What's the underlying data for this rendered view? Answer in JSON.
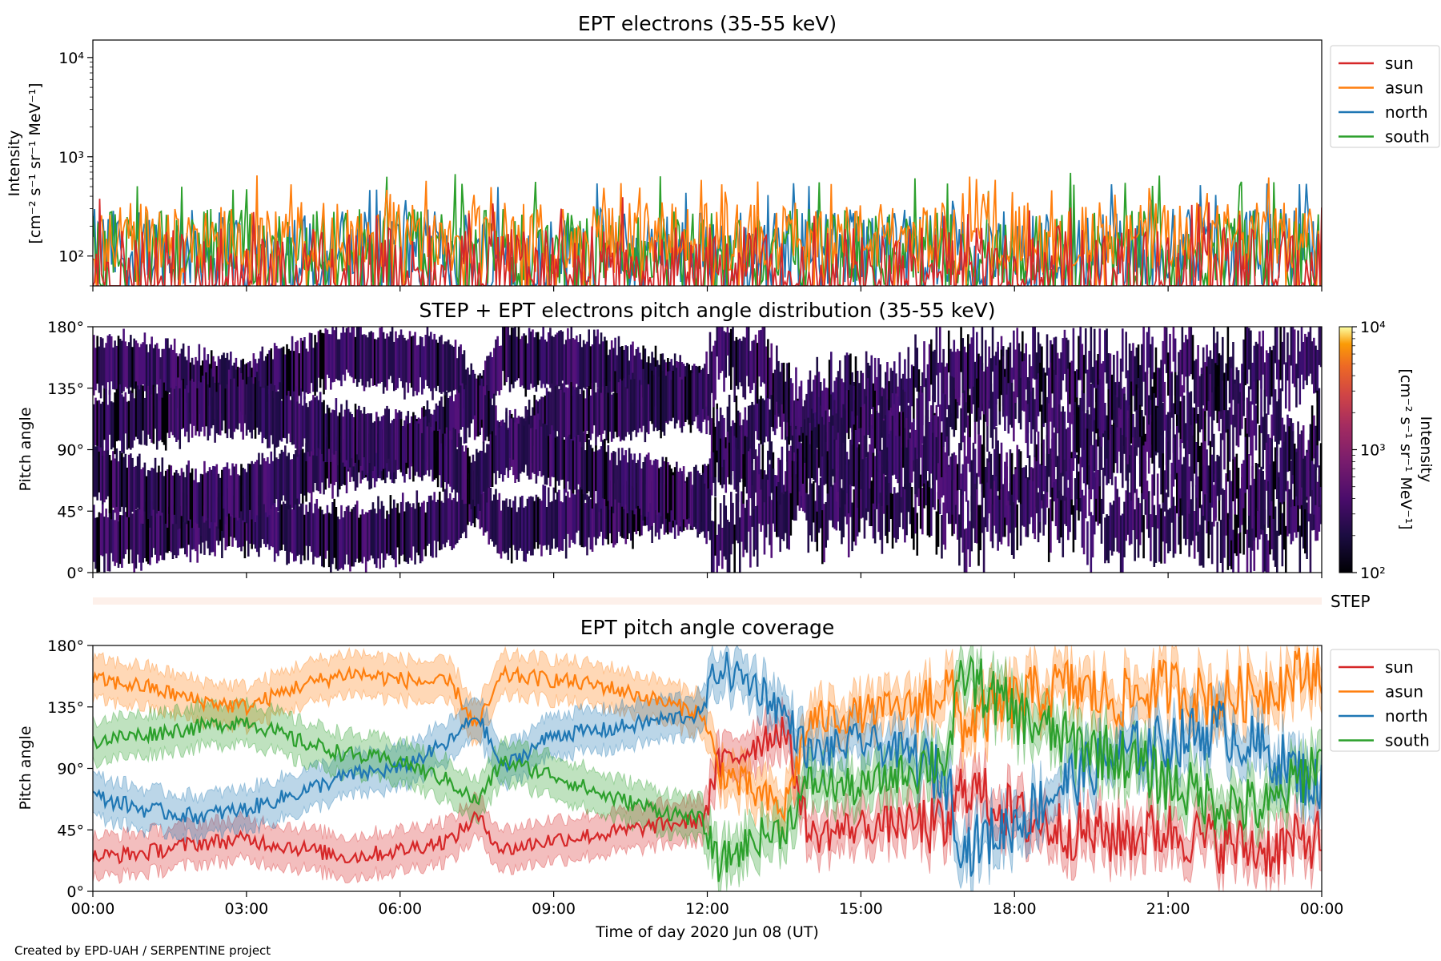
{
  "credit": "Created by EPD-UAH / SERPENTINE project",
  "colors": {
    "sun": "#d62728",
    "asun": "#ff7f0e",
    "north": "#1f77b4",
    "south": "#2ca02c"
  },
  "chart_data": [
    {
      "type": "line",
      "title": "EPT electrons (35-55 keV)",
      "ylabel": [
        "Intensity",
        "[cm⁻² s⁻¹ sr⁻¹ MeV⁻¹]"
      ],
      "yscale": "log",
      "ylim": [
        50,
        15000
      ],
      "yticks": [
        {
          "value": 100,
          "label": "10²"
        },
        {
          "value": 1000,
          "label": "10³"
        },
        {
          "value": 10000,
          "label": "10⁴"
        }
      ],
      "x_range_hours": [
        0,
        24
      ],
      "legend_position": "outside-right",
      "series": [
        {
          "name": "sun",
          "color": "#d62728",
          "typical_range": [
            50,
            200
          ],
          "peak": 400
        },
        {
          "name": "asun",
          "color": "#ff7f0e",
          "typical_range": [
            150,
            350
          ],
          "peak": 650
        },
        {
          "name": "north",
          "color": "#1f77b4",
          "typical_range": [
            100,
            300
          ],
          "peak": 550
        },
        {
          "name": "south",
          "color": "#2ca02c",
          "typical_range": [
            100,
            300
          ],
          "peak": 700
        }
      ]
    },
    {
      "type": "heatmap",
      "title": "STEP + EPT electrons pitch angle distribution (35-55 keV)",
      "ylabel": "Pitch angle",
      "yticks": [
        "0°",
        "45°",
        "90°",
        "135°",
        "180°"
      ],
      "ylim": [
        0,
        180
      ],
      "colorbar": {
        "label": [
          "Intensity",
          "[cm⁻² s⁻¹ sr⁻¹ MeV⁻¹]"
        ],
        "scale": "log",
        "range": [
          100,
          10000
        ],
        "ticks": [
          "10²",
          "10³",
          "10⁴"
        ],
        "colormap": "inferno",
        "typical_value": 200
      }
    },
    {
      "type": "heatmap",
      "label": "STEP",
      "note": "empty strip, no data"
    },
    {
      "type": "line",
      "title": "EPT pitch angle coverage",
      "ylabel": "Pitch angle",
      "xlabel": "Time of day 2020 Jun 08 (UT)",
      "ylim": [
        0,
        180
      ],
      "yticks": [
        "0°",
        "45°",
        "90°",
        "135°",
        "180°"
      ],
      "xticks": [
        "00:00",
        "03:00",
        "06:00",
        "09:00",
        "12:00",
        "15:00",
        "18:00",
        "21:00",
        "00:00"
      ],
      "x_hours": [
        0,
        1,
        2,
        3,
        4,
        5,
        6,
        7,
        7.5,
        8,
        9,
        10,
        11,
        11.9,
        12.2,
        13,
        13.5,
        14,
        15,
        16,
        16.7,
        17,
        18,
        19,
        20,
        21,
        22,
        23,
        24
      ],
      "legend_position": "outside-right",
      "band_halfwidth_deg": 15,
      "series": [
        {
          "name": "sun",
          "color": "#d62728",
          "values": [
            25,
            28,
            35,
            38,
            32,
            25,
            30,
            38,
            55,
            30,
            38,
            42,
            48,
            52,
            90,
            110,
            120,
            40,
            48,
            50,
            45,
            80,
            55,
            45,
            40,
            45,
            35,
            30,
            40
          ]
        },
        {
          "name": "asun",
          "color": "#ff7f0e",
          "values": [
            155,
            150,
            140,
            135,
            150,
            160,
            155,
            152,
            120,
            158,
            155,
            150,
            140,
            130,
            90,
            70,
            60,
            125,
            130,
            135,
            150,
            120,
            140,
            150,
            140,
            150,
            140,
            150,
            165
          ]
        },
        {
          "name": "north",
          "color": "#1f77b4",
          "values": [
            70,
            60,
            55,
            60,
            72,
            85,
            90,
            110,
            130,
            90,
            115,
            118,
            125,
            130,
            165,
            150,
            130,
            100,
            110,
            100,
            80,
            30,
            50,
            80,
            100,
            110,
            120,
            100,
            75
          ]
        },
        {
          "name": "south",
          "color": "#2ca02c",
          "values": [
            110,
            115,
            120,
            125,
            110,
            100,
            95,
            80,
            65,
            95,
            85,
            70,
            60,
            52,
            20,
            40,
            45,
            80,
            75,
            90,
            100,
            160,
            130,
            110,
            100,
            80,
            65,
            60,
            100
          ]
        }
      ]
    }
  ]
}
